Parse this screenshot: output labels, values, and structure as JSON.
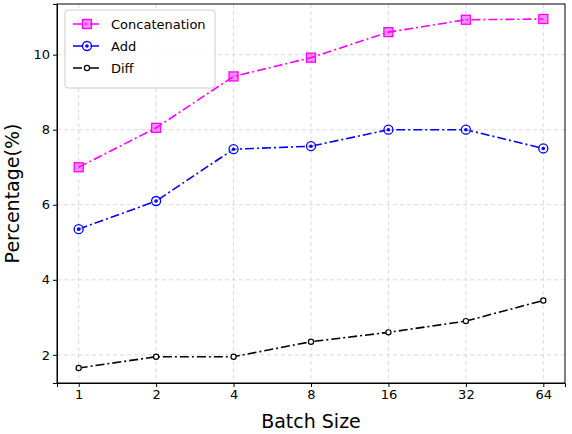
{
  "chart_data": {
    "type": "line",
    "x_label": "Batch Size",
    "y_label": "Percentage(%)",
    "categories": [
      1,
      2,
      4,
      8,
      16,
      32,
      64
    ],
    "series": [
      {
        "name": "Concatenation",
        "color": "#ff00ff",
        "marker": "square",
        "line_style": "dashdot",
        "values": [
          7.0,
          8.05,
          9.42,
          9.92,
          10.6,
          10.93,
          10.95
        ]
      },
      {
        "name": "Add",
        "color": "#0000ff",
        "marker": "target",
        "line_style": "dashdot",
        "values": [
          5.35,
          6.1,
          7.48,
          7.56,
          8.0,
          8.0,
          7.5
        ]
      },
      {
        "name": "Diff",
        "color": "#000000",
        "marker": "circle",
        "line_style": "dashdot",
        "values": [
          1.65,
          1.95,
          1.95,
          2.35,
          2.6,
          2.9,
          3.45
        ]
      }
    ],
    "ylim": [
      1.25,
      11.35
    ],
    "yticks": [
      2,
      4,
      6,
      8,
      10
    ],
    "grid": true,
    "legend": "upper left"
  }
}
